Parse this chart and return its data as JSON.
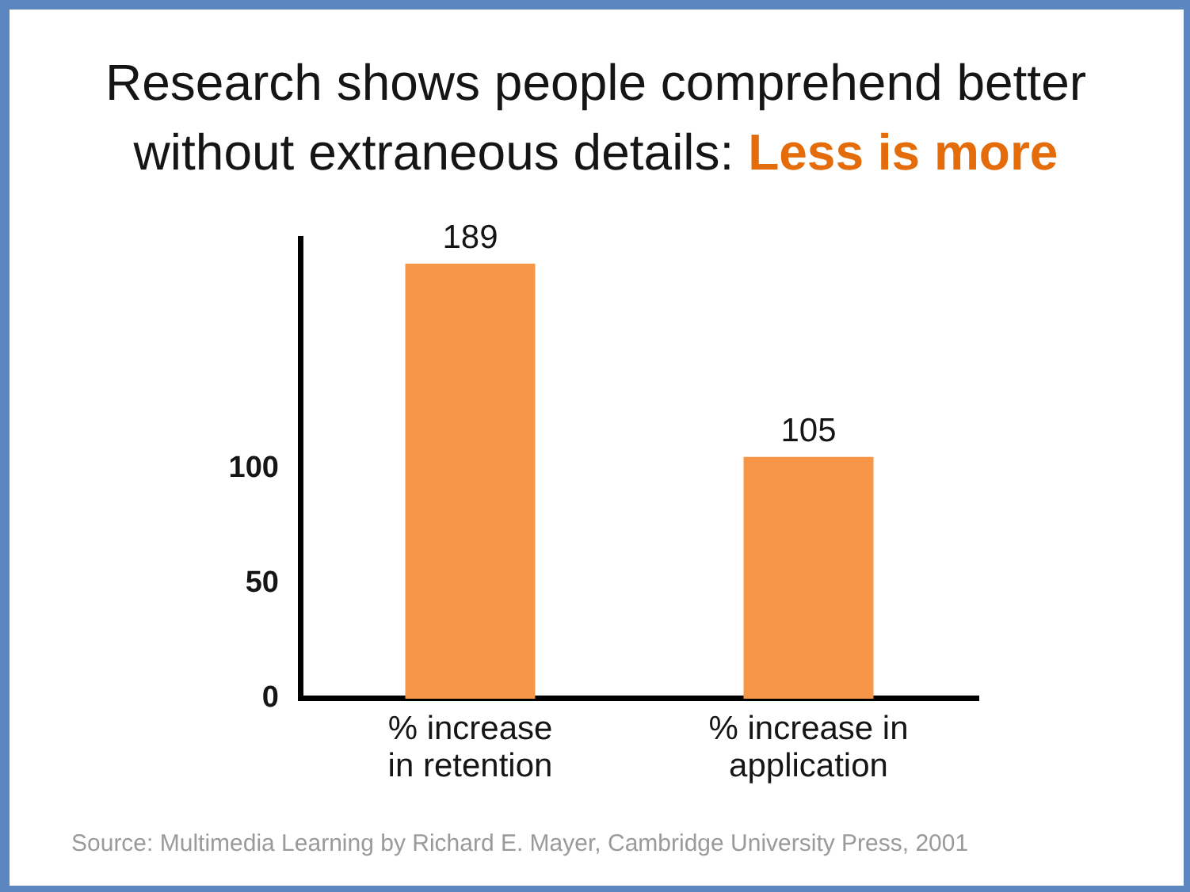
{
  "chart_data": {
    "type": "bar",
    "title": "Research shows people comprehend better without extraneous details: Less is more",
    "categories": [
      "% increase in retention",
      "% increase in application"
    ],
    "values": [
      189,
      105
    ],
    "color": "#f79646",
    "ylim": [
      0,
      200
    ],
    "yticks": [
      0,
      50,
      100
    ],
    "grid": false,
    "legend": false,
    "data_labels": true,
    "annotations": [
      "Source: Multimedia Learning by Richard E. Mayer, Cambridge University Press, 2001"
    ]
  }
}
